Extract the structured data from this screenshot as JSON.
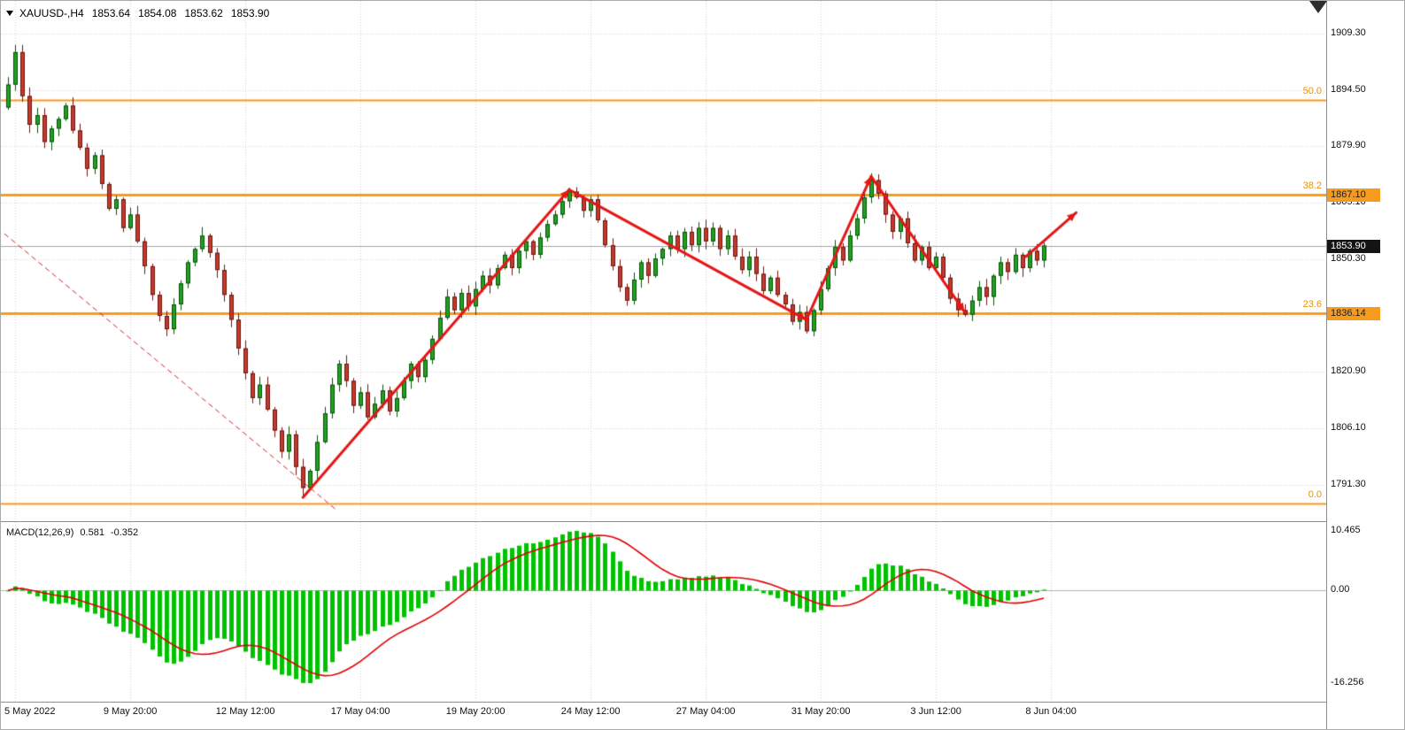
{
  "header": {
    "symbol": "XAUUSD-,H4",
    "open": "1853.64",
    "high": "1854.08",
    "low": "1853.62",
    "close": "1853.90"
  },
  "colors": {
    "bull": "#21A121",
    "bull_border": "#0A4F0A",
    "bear": "#C33A2C",
    "bear_border": "#6B1712",
    "grid": "#d6d6d6",
    "axis_text": "#111111",
    "current_line": "#a8a8a8",
    "fibo": "#F79B1E",
    "arrow": "#E51616",
    "trendline": "#D42424",
    "macd_histogram": "#00C300",
    "macd_signal": "#E00000"
  },
  "chart_data": {
    "type": "candlestick",
    "title": "XAUUSD-,H4",
    "price_axis": {
      "min": 1781.8,
      "max": 1917.9,
      "ticks": [
        1909.3,
        1894.5,
        1879.9,
        1865.1,
        1850.3,
        1835.5,
        1820.9,
        1806.1,
        1791.3
      ]
    },
    "time_axis": {
      "labels": [
        {
          "text": "5 May 2022",
          "bar": 1
        },
        {
          "text": "9 May 20:00",
          "bar": 17
        },
        {
          "text": "12 May 12:00",
          "bar": 33
        },
        {
          "text": "17 May 04:00",
          "bar": 49
        },
        {
          "text": "19 May 20:00",
          "bar": 65
        },
        {
          "text": "24 May 12:00",
          "bar": 81
        },
        {
          "text": "27 May 04:00",
          "bar": 97
        },
        {
          "text": "31 May 20:00",
          "bar": 113
        },
        {
          "text": "3 Jun 12:00",
          "bar": 129
        },
        {
          "text": "8 Jun 04:00",
          "bar": 145
        }
      ]
    },
    "candles": {
      "first_open": 1890.0,
      "closes": [
        1896.0,
        1904.5,
        1893.0,
        1885.5,
        1888.0,
        1881.0,
        1884.5,
        1887.0,
        1890.5,
        1884.0,
        1879.5,
        1874.0,
        1877.5,
        1870.0,
        1863.5,
        1866.0,
        1858.5,
        1862.0,
        1855.0,
        1848.5,
        1841.0,
        1835.5,
        1832.0,
        1838.5,
        1844.0,
        1849.5,
        1853.0,
        1856.5,
        1852.0,
        1847.5,
        1841.0,
        1834.5,
        1827.0,
        1820.5,
        1814.0,
        1817.5,
        1811.0,
        1805.5,
        1800.0,
        1804.5,
        1796.0,
        1790.5,
        1795.0,
        1802.5,
        1810.0,
        1817.5,
        1823.0,
        1818.5,
        1812.0,
        1815.5,
        1809.0,
        1812.5,
        1816.0,
        1810.5,
        1814.0,
        1818.5,
        1823.0,
        1819.5,
        1824.0,
        1829.5,
        1835.0,
        1840.5,
        1837.0,
        1841.5,
        1838.0,
        1842.5,
        1846.0,
        1843.5,
        1848.0,
        1851.5,
        1848.0,
        1852.5,
        1855.0,
        1851.5,
        1856.0,
        1859.5,
        1862.0,
        1865.5,
        1868.0,
        1866.5,
        1863.0,
        1866.0,
        1860.5,
        1854.0,
        1848.5,
        1843.0,
        1839.5,
        1845.0,
        1849.5,
        1846.0,
        1850.5,
        1853.0,
        1856.5,
        1853.0,
        1857.5,
        1854.0,
        1858.5,
        1855.0,
        1858.5,
        1853.0,
        1856.5,
        1851.0,
        1847.5,
        1851.0,
        1846.5,
        1842.0,
        1845.5,
        1841.0,
        1838.5,
        1834.0,
        1836.5,
        1831.5,
        1837.0,
        1842.5,
        1848.0,
        1853.5,
        1850.0,
        1856.5,
        1861.0,
        1866.5,
        1871.0,
        1867.5,
        1862.0,
        1857.5,
        1861.0,
        1854.5,
        1850.0,
        1853.5,
        1848.0,
        1851.0,
        1845.5,
        1840.0,
        1837.0,
        1835.8,
        1839.5,
        1843.0,
        1840.5,
        1846.0,
        1849.5,
        1847.0,
        1851.5,
        1848.0,
        1852.5,
        1850.0,
        1853.9
      ]
    },
    "current_price": 1853.9,
    "current_price_tag": "1853.90",
    "fibonacci": {
      "levels": [
        {
          "pct": "50.0",
          "price": 1891.97,
          "width": 2
        },
        {
          "pct": "38.2",
          "price": 1867.1,
          "width": 3,
          "tag": "1867.10"
        },
        {
          "pct": "23.6",
          "price": 1836.14,
          "width": 3,
          "tag": "1836.14"
        },
        {
          "pct": "0.0",
          "price": 1786.54,
          "width": 2
        }
      ]
    },
    "trendline": {
      "from": {
        "bar": -0.5,
        "price": 1857.0
      },
      "to": {
        "bar": 45.5,
        "price": 1785.0
      },
      "dashed": true
    },
    "arrows": {
      "segments": [
        [
          41,
          1788.0,
          78,
          1868.5
        ],
        [
          78,
          1868.5,
          111,
          1834.5
        ],
        [
          111,
          1834.5,
          120,
          1872.0
        ],
        [
          120,
          1872.0,
          133,
          1836.5
        ],
        [
          141.5,
          1851.0,
          148.5,
          1862.5
        ]
      ]
    },
    "macd": {
      "label": "MACD(12,26,9)",
      "value_main": "0.581",
      "value_signal": "-0.352",
      "fast": 12,
      "slow": 26,
      "signal_period": 9,
      "pos_extreme": 10.465,
      "neg_extreme": -16.256,
      "axis": {
        "min": -19.5,
        "max": 12.0,
        "ticks": [
          {
            "label": "10.465",
            "value": 10.465
          },
          {
            "label": "0.00",
            "value": 0
          },
          {
            "label": "-16.256",
            "value": -16.256
          }
        ]
      }
    }
  }
}
